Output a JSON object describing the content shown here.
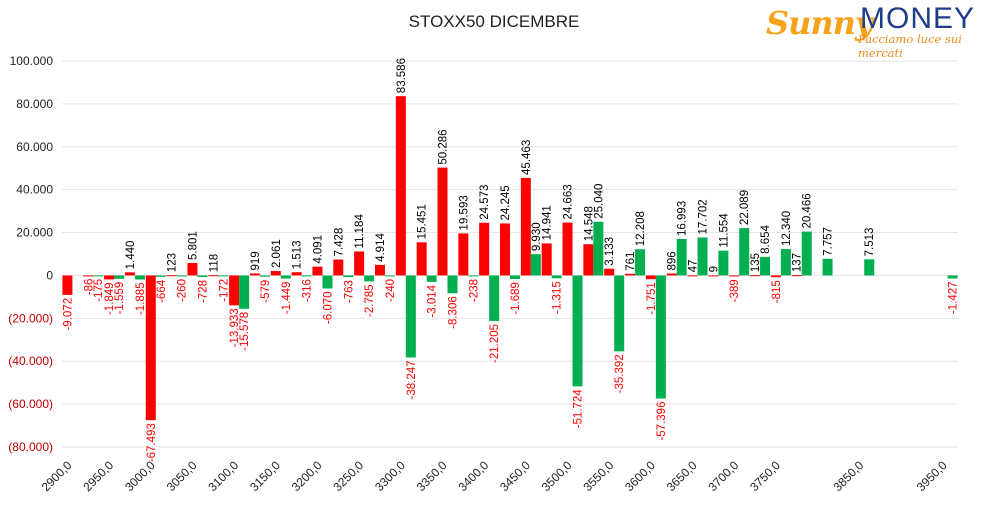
{
  "logo": {
    "brand_a": "Sunny",
    "brand_b": "MONEY",
    "tagline": "Facciamo luce sui mercati"
  },
  "colors": {
    "call": "#ff0000",
    "put": "#00b050",
    "positive_label": "#000000",
    "negative_label": "#ff0000",
    "axis_text": "#222222",
    "gridline": "#e6e6e6",
    "negative_tick": "#c00000"
  },
  "chart_data": {
    "type": "bar",
    "title": "STOXX50 DICEMBRE",
    "ylim": [
      -80000,
      100000
    ],
    "yticks": [
      {
        "value": 100000,
        "label": "100.000"
      },
      {
        "value": 80000,
        "label": "80.000"
      },
      {
        "value": 60000,
        "label": "60.000"
      },
      {
        "value": 40000,
        "label": "40.000"
      },
      {
        "value": 20000,
        "label": "20.000"
      },
      {
        "value": 0,
        "label": "0"
      },
      {
        "value": -20000,
        "label": "(20.000)"
      },
      {
        "value": -40000,
        "label": "(40.000)"
      },
      {
        "value": -60000,
        "label": "(60.000)"
      },
      {
        "value": -80000,
        "label": "(80.000)"
      }
    ],
    "strike_step": 25,
    "strike_range": [
      2900,
      3950
    ],
    "xtick_labels": [
      {
        "strike": 2900,
        "label": "2900,0"
      },
      {
        "strike": 2950,
        "label": "2950,0"
      },
      {
        "strike": 3000,
        "label": "3000,0"
      },
      {
        "strike": 3050,
        "label": "3050,0"
      },
      {
        "strike": 3100,
        "label": "3100,0"
      },
      {
        "strike": 3150,
        "label": "3150,0"
      },
      {
        "strike": 3200,
        "label": "3200,0"
      },
      {
        "strike": 3250,
        "label": "3250,0"
      },
      {
        "strike": 3300,
        "label": "3300,0"
      },
      {
        "strike": 3350,
        "label": "3350,0"
      },
      {
        "strike": 3400,
        "label": "3400,0"
      },
      {
        "strike": 3450,
        "label": "3450,0"
      },
      {
        "strike": 3500,
        "label": "3500,0"
      },
      {
        "strike": 3550,
        "label": "3550,0"
      },
      {
        "strike": 3600,
        "label": "3600,0"
      },
      {
        "strike": 3650,
        "label": "3650,0"
      },
      {
        "strike": 3700,
        "label": "3700,0"
      },
      {
        "strike": 3750,
        "label": "3750,0"
      },
      {
        "strike": 3850,
        "label": "3850,0"
      },
      {
        "strike": 3950,
        "label": "3950,0"
      }
    ],
    "series": [
      {
        "color_key": "call",
        "points": [
          {
            "x": 2900,
            "y": -9072,
            "label": "-9.072"
          },
          {
            "x": 2925,
            "y": -86,
            "label": "-86"
          },
          {
            "x": 2950,
            "y": -1849,
            "label": "-1.849"
          },
          {
            "x": 2975,
            "y": 1440,
            "label": "1.440"
          },
          {
            "x": 3000,
            "y": -67493,
            "label": "-67.493"
          },
          {
            "x": 3025,
            "y": 123,
            "label": "123"
          },
          {
            "x": 3050,
            "y": 5801,
            "label": "5.801"
          },
          {
            "x": 3075,
            "y": 118,
            "label": "118"
          },
          {
            "x": 3100,
            "y": -13933,
            "label": "-13.933"
          },
          {
            "x": 3125,
            "y": 919,
            "label": "919"
          },
          {
            "x": 3150,
            "y": 2061,
            "label": "2.061"
          },
          {
            "x": 3175,
            "y": 1513,
            "label": "1.513"
          },
          {
            "x": 3200,
            "y": 4091,
            "label": "4.091"
          },
          {
            "x": 3225,
            "y": 7428,
            "label": "7.428"
          },
          {
            "x": 3250,
            "y": 11184,
            "label": "11.184"
          },
          {
            "x": 3275,
            "y": 4914,
            "label": "4.914"
          },
          {
            "x": 3300,
            "y": 83586,
            "label": "83.586"
          },
          {
            "x": 3325,
            "y": 15451,
            "label": "15.451"
          },
          {
            "x": 3350,
            "y": 50286,
            "label": "50.286"
          },
          {
            "x": 3375,
            "y": 19593,
            "label": "19.593"
          },
          {
            "x": 3400,
            "y": 24573,
            "label": "24.573"
          },
          {
            "x": 3425,
            "y": 24245,
            "label": "24.245"
          },
          {
            "x": 3450,
            "y": 45463,
            "label": "45.463"
          },
          {
            "x": 3475,
            "y": 14941,
            "label": "14.941"
          },
          {
            "x": 3500,
            "y": 24663,
            "label": "24.663"
          },
          {
            "x": 3525,
            "y": 14548,
            "label": "14.548"
          },
          {
            "x": 3550,
            "y": 3133,
            "label": "3.133"
          },
          {
            "x": 3575,
            "y": 761,
            "label": "761"
          },
          {
            "x": 3600,
            "y": -1751,
            "label": "-1.751"
          },
          {
            "x": 3625,
            "y": 896,
            "label": "896"
          },
          {
            "x": 3650,
            "y": 47,
            "label": "47"
          },
          {
            "x": 3675,
            "y": 9,
            "label": "9"
          },
          {
            "x": 3700,
            "y": -389,
            "label": "-389"
          },
          {
            "x": 3725,
            "y": 135,
            "label": "135"
          },
          {
            "x": 3750,
            "y": -815,
            "label": "-815"
          },
          {
            "x": 3775,
            "y": 137,
            "label": "137"
          }
        ]
      },
      {
        "color_key": "put",
        "points": [
          {
            "x": 2925,
            "y": -175,
            "label": "-175"
          },
          {
            "x": 2950,
            "y": -1559,
            "label": "-1.559"
          },
          {
            "x": 2975,
            "y": -1885,
            "label": "-1.885"
          },
          {
            "x": 3000,
            "y": -664,
            "label": "-664"
          },
          {
            "x": 3025,
            "y": -260,
            "label": "-260"
          },
          {
            "x": 3050,
            "y": -728,
            "label": "-728"
          },
          {
            "x": 3075,
            "y": -172,
            "label": "-172"
          },
          {
            "x": 3100,
            "y": -15578,
            "label": "-15.578"
          },
          {
            "x": 3125,
            "y": -579,
            "label": "-579"
          },
          {
            "x": 3150,
            "y": -1449,
            "label": "-1.449"
          },
          {
            "x": 3175,
            "y": -316,
            "label": "-316"
          },
          {
            "x": 3200,
            "y": -6070,
            "label": "-6.070"
          },
          {
            "x": 3225,
            "y": -763,
            "label": "-763"
          },
          {
            "x": 3250,
            "y": -2785,
            "label": "-2.785"
          },
          {
            "x": 3275,
            "y": -240,
            "label": "-240"
          },
          {
            "x": 3300,
            "y": -38247,
            "label": "-38.247"
          },
          {
            "x": 3325,
            "y": -3014,
            "label": "-3.014"
          },
          {
            "x": 3350,
            "y": -8306,
            "label": "-8.306"
          },
          {
            "x": 3375,
            "y": -238,
            "label": "-238"
          },
          {
            "x": 3400,
            "y": -21205,
            "label": "-21.205"
          },
          {
            "x": 3425,
            "y": -1689,
            "label": "-1.689"
          },
          {
            "x": 3450,
            "y": 9930,
            "label": "9.930"
          },
          {
            "x": 3475,
            "y": -1315,
            "label": "-1.315"
          },
          {
            "x": 3500,
            "y": -51724,
            "label": "-51.724"
          },
          {
            "x": 3525,
            "y": 25040,
            "label": "25.040"
          },
          {
            "x": 3550,
            "y": -35392,
            "label": "-35.392"
          },
          {
            "x": 3575,
            "y": 12208,
            "label": "12.208"
          },
          {
            "x": 3600,
            "y": -57396,
            "label": "-57.396"
          },
          {
            "x": 3625,
            "y": 16993,
            "label": "16.993"
          },
          {
            "x": 3650,
            "y": 17702,
            "label": "17.702"
          },
          {
            "x": 3675,
            "y": 11554,
            "label": "11.554"
          },
          {
            "x": 3700,
            "y": 22089,
            "label": "22.089"
          },
          {
            "x": 3725,
            "y": 8654,
            "label": "8.654"
          },
          {
            "x": 3750,
            "y": 12340,
            "label": "12.340"
          },
          {
            "x": 3775,
            "y": 20466,
            "label": "20.466"
          },
          {
            "x": 3800,
            "y": 7757,
            "label": "7.757"
          },
          {
            "x": 3850,
            "y": 7513,
            "label": "7.513"
          },
          {
            "x": 3950,
            "y": -1427,
            "label": "-1.427"
          }
        ]
      }
    ],
    "grid": true,
    "legend": "none"
  }
}
